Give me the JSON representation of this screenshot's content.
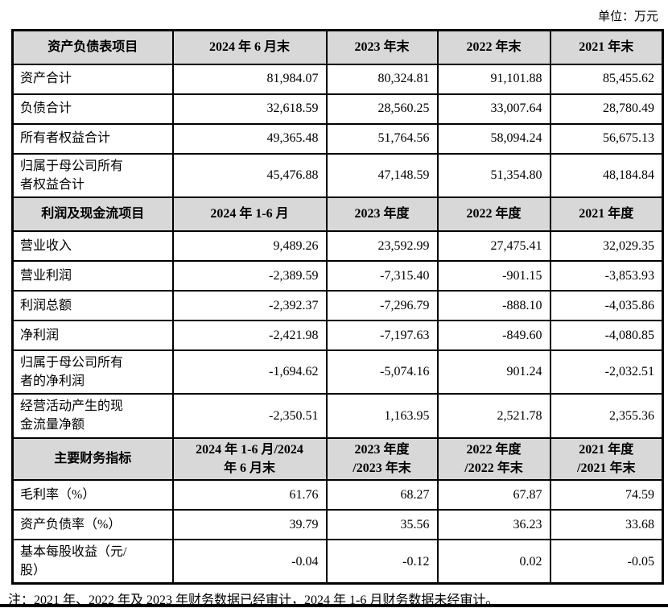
{
  "unit_label": "单位：万元",
  "colors": {
    "header_bg": "#D8D8D8",
    "border": "#000000",
    "text": "#000000"
  },
  "table": {
    "sections": [
      {
        "header": {
          "label": "资产负债表项目",
          "cols": [
            "2024 年 6 月末",
            "2023 年末",
            "2022 年末",
            "2021 年末"
          ]
        },
        "rows": [
          {
            "label": "资产合计",
            "values": [
              "81,984.07",
              "80,324.81",
              "91,101.88",
              "85,455.62"
            ]
          },
          {
            "label": "负债合计",
            "values": [
              "32,618.59",
              "28,560.25",
              "33,007.64",
              "28,780.49"
            ]
          },
          {
            "label": "所有者权益合计",
            "values": [
              "49,365.48",
              "51,764.56",
              "58,094.24",
              "56,675.13"
            ]
          },
          {
            "label": "归属于母公司所有\n者权益合计",
            "values": [
              "45,476.88",
              "47,148.59",
              "51,354.80",
              "48,184.84"
            ]
          }
        ]
      },
      {
        "header": {
          "label": "利润及现金流项目",
          "cols": [
            "2024 年 1-6 月",
            "2023 年度",
            "2022 年度",
            "2021 年度"
          ]
        },
        "rows": [
          {
            "label": "营业收入",
            "values": [
              "9,489.26",
              "23,592.99",
              "27,475.41",
              "32,029.35"
            ]
          },
          {
            "label": "营业利润",
            "values": [
              "-2,389.59",
              "-7,315.40",
              "-901.15",
              "-3,853.93"
            ]
          },
          {
            "label": "利润总额",
            "values": [
              "-2,392.37",
              "-7,296.79",
              "-888.10",
              "-4,035.86"
            ]
          },
          {
            "label": "净利润",
            "values": [
              "-2,421.98",
              "-7,197.63",
              "-849.60",
              "-4,080.85"
            ]
          },
          {
            "label": "归属于母公司所有\n者的净利润",
            "values": [
              "-1,694.62",
              "-5,074.16",
              "901.24",
              "-2,032.51"
            ]
          },
          {
            "label": "经营活动产生的现\n金流量净额",
            "values": [
              "-2,350.51",
              "1,163.95",
              "2,521.78",
              "2,355.36"
            ]
          }
        ]
      },
      {
        "header": {
          "label": "主要财务指标",
          "cols": [
            "2024 年 1-6 月/2024\n年 6 月末",
            "2023 年度\n/2023 年末",
            "2022 年度\n/2022 年末",
            "2021 年度\n/2021 年末"
          ]
        },
        "rows": [
          {
            "label": "毛利率（%）",
            "values": [
              "61.76",
              "68.27",
              "67.87",
              "74.59"
            ]
          },
          {
            "label": "资产负债率（%）",
            "values": [
              "39.79",
              "35.56",
              "36.23",
              "33.68"
            ]
          },
          {
            "label": "基本每股收益（元/\n股）",
            "values": [
              "-0.04",
              "-0.12",
              "0.02",
              "-0.05"
            ]
          }
        ]
      }
    ]
  },
  "footnote": "注：2021 年、2022 年及 2023 年财务数据已经审计，2024 年 1-6 月财务数据未经审计。"
}
